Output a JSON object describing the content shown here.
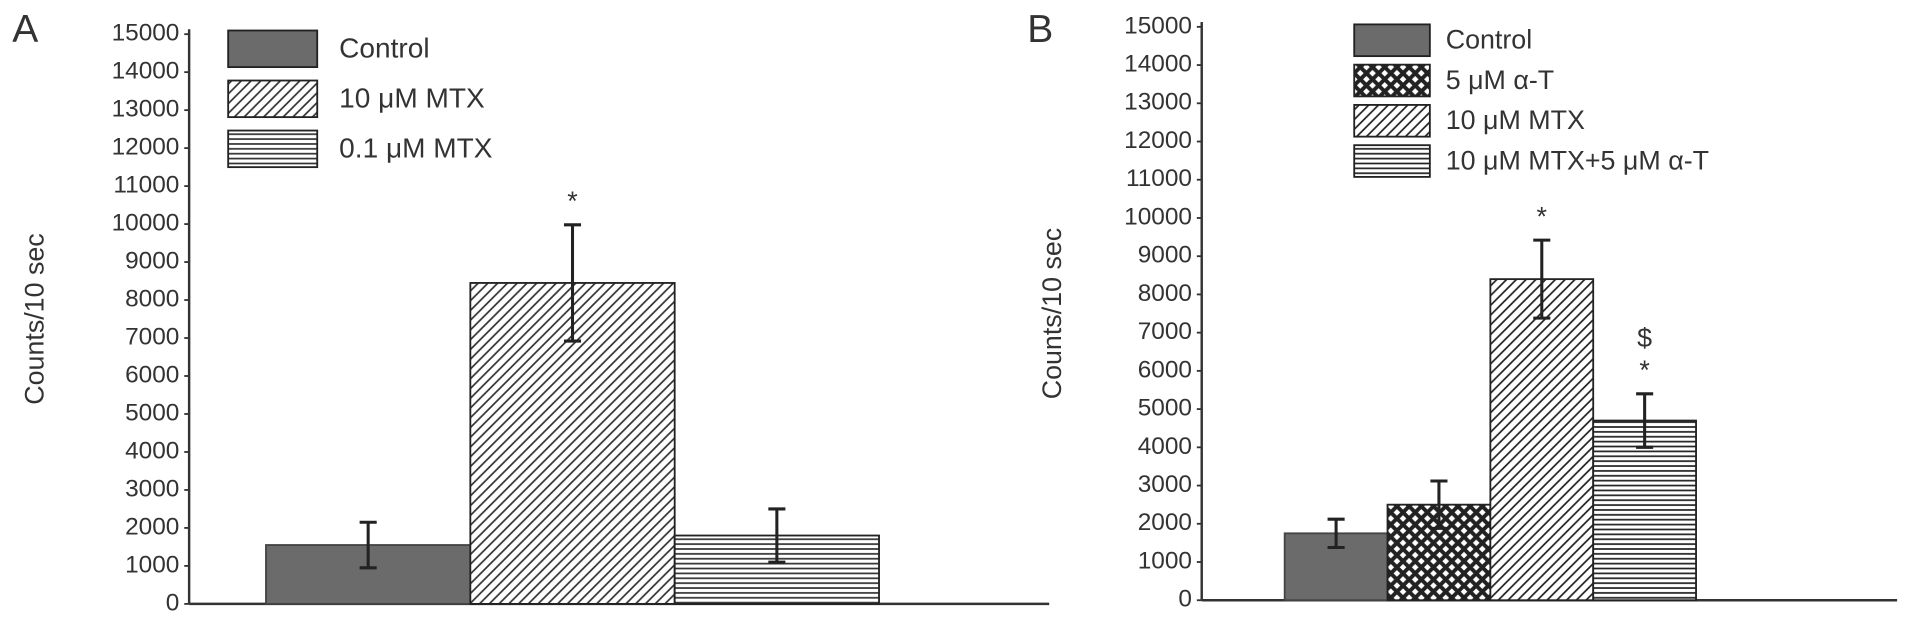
{
  "chart_data": [
    {
      "type": "bar",
      "panel": "A",
      "ylabel": "Counts/10 sec",
      "ylim": [
        0,
        15000
      ],
      "yticks": [
        0,
        1000,
        2000,
        3000,
        4000,
        5000,
        6000,
        7000,
        8000,
        9000,
        10000,
        11000,
        12000,
        13000,
        14000,
        15000
      ],
      "series": [
        {
          "name": "Control",
          "color": "#6b6b6b",
          "pattern": "solid",
          "values": [
            1550
          ],
          "errors": [
            600
          ]
        },
        {
          "name": "10 μM MTX",
          "color": "#333333",
          "pattern": "diagonal",
          "values": [
            8450
          ],
          "errors": [
            1530
          ],
          "annotations": [
            "*"
          ]
        },
        {
          "name": "0.1 μM MTX",
          "color": "#333333",
          "pattern": "horizontal",
          "values": [
            1800
          ],
          "errors": [
            700
          ]
        }
      ]
    },
    {
      "type": "bar",
      "panel": "B",
      "ylabel": "Counts/10 sec",
      "ylim": [
        0,
        15000
      ],
      "yticks": [
        0,
        1000,
        2000,
        3000,
        4000,
        5000,
        6000,
        7000,
        8000,
        9000,
        10000,
        11000,
        12000,
        13000,
        14000,
        15000
      ],
      "series": [
        {
          "name": "Control",
          "color": "#6b6b6b",
          "pattern": "solid",
          "values": [
            1750
          ],
          "errors": [
            370
          ]
        },
        {
          "name": "5 μM α-T",
          "color": "#222222",
          "pattern": "crosshatch",
          "values": [
            2500
          ],
          "errors": [
            620
          ]
        },
        {
          "name": "10 μM MTX",
          "color": "#222222",
          "pattern": "diagonal",
          "values": [
            8400
          ],
          "errors": [
            1020
          ],
          "annotations": [
            "*"
          ]
        },
        {
          "name": "10 μM MTX+5 μM α-T",
          "color": "#222222",
          "pattern": "horizontal",
          "values": [
            4700
          ],
          "errors": [
            700
          ],
          "annotations": [
            "$",
            "*"
          ]
        }
      ]
    }
  ]
}
